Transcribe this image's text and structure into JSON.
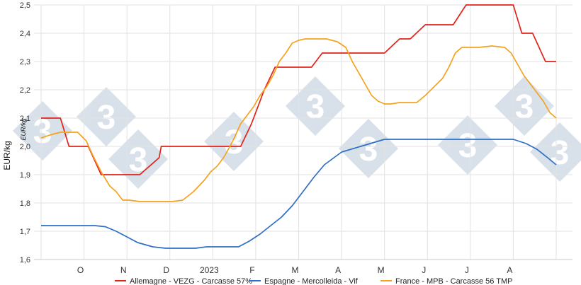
{
  "chart_data": {
    "type": "line",
    "title": "",
    "ylabel": "EUR/kg",
    "ylabel_secondary": "EUR/kg",
    "ylim": [
      1.6,
      2.5
    ],
    "yticks": [
      "1,6",
      "1,7",
      "1,8",
      "1,9",
      "2,0",
      "2,1",
      "2,2",
      "2,3",
      "2,4",
      "2,5"
    ],
    "xlim": [
      0,
      12.5
    ],
    "categories": [
      "O",
      "N",
      "D",
      "2023",
      "F",
      "M",
      "A",
      "M",
      "J",
      "J",
      "A"
    ],
    "grid": true,
    "legend_position": "bottom",
    "colors": {
      "grid": "#e2e2e2",
      "watermark": "#b9cad8"
    },
    "series": [
      {
        "name": "Allemagne - VEZG - Carcasse 57%",
        "color": "#e2231a",
        "x": [
          0,
          0.45,
          0.65,
          1.1,
          1.4,
          2.1,
          2.3,
          2.75,
          2.8,
          3.35,
          4.65,
          4.9,
          5.2,
          5.45,
          6.3,
          6.55,
          8.0,
          8.35,
          8.6,
          8.95,
          9.3,
          9.6,
          9.9,
          10.3,
          11.0,
          11.2,
          11.45,
          11.75,
          12.0
        ],
        "y": [
          2.1,
          2.1,
          2.0,
          2.0,
          1.9,
          1.9,
          1.9,
          1.96,
          2.0,
          2.0,
          2.0,
          2.08,
          2.2,
          2.28,
          2.28,
          2.33,
          2.33,
          2.38,
          2.38,
          2.43,
          2.43,
          2.43,
          2.5,
          2.5,
          2.5,
          2.4,
          2.4,
          2.3,
          2.3
        ]
      },
      {
        "name": "Espagne - Mercolleida - Vif",
        "color": "#2f6fc4",
        "x": [
          0,
          0.6,
          1.0,
          1.25,
          1.5,
          1.75,
          2.0,
          2.25,
          2.6,
          2.9,
          3.3,
          3.6,
          3.85,
          4.1,
          4.35,
          4.6,
          4.85,
          5.1,
          5.35,
          5.6,
          5.85,
          6.1,
          6.35,
          6.6,
          7.0,
          8.0,
          9.0,
          10.0,
          10.6,
          11.0,
          11.3,
          11.55,
          11.8,
          12.0
        ],
        "y": [
          1.72,
          1.72,
          1.72,
          1.72,
          1.716,
          1.7,
          1.68,
          1.66,
          1.645,
          1.64,
          1.64,
          1.64,
          1.645,
          1.645,
          1.645,
          1.645,
          1.665,
          1.69,
          1.72,
          1.75,
          1.79,
          1.84,
          1.89,
          1.935,
          1.98,
          2.025,
          2.025,
          2.025,
          2.025,
          2.025,
          2.01,
          1.99,
          1.96,
          1.935
        ]
      },
      {
        "name": "France - MPB - Carcasse 56 TMP",
        "color": "#f5a21d",
        "x": [
          0,
          0.2,
          0.45,
          0.65,
          0.85,
          1.05,
          1.2,
          1.4,
          1.6,
          1.75,
          1.9,
          2.05,
          2.3,
          2.55,
          2.8,
          3.05,
          3.3,
          3.55,
          3.8,
          3.95,
          4.1,
          4.25,
          4.4,
          4.5,
          4.65,
          4.8,
          4.95,
          5.1,
          5.25,
          5.4,
          5.55,
          5.7,
          5.85,
          6.0,
          6.15,
          6.4,
          6.65,
          6.9,
          7.1,
          7.25,
          7.4,
          7.55,
          7.7,
          7.85,
          8.0,
          8.15,
          8.35,
          8.55,
          8.75,
          8.95,
          9.15,
          9.35,
          9.5,
          9.65,
          9.8,
          9.95,
          10.2,
          10.5,
          10.8,
          10.95,
          11.1,
          11.25,
          11.4,
          11.55,
          11.7,
          11.85,
          12.0
        ],
        "y": [
          2.03,
          2.04,
          2.05,
          2.05,
          2.05,
          2.02,
          1.97,
          1.91,
          1.86,
          1.84,
          1.81,
          1.81,
          1.805,
          1.805,
          1.805,
          1.805,
          1.81,
          1.84,
          1.88,
          1.91,
          1.93,
          1.96,
          2.0,
          2.03,
          2.08,
          2.11,
          2.14,
          2.18,
          2.21,
          2.25,
          2.3,
          2.33,
          2.365,
          2.375,
          2.38,
          2.38,
          2.38,
          2.37,
          2.35,
          2.3,
          2.26,
          2.22,
          2.18,
          2.16,
          2.15,
          2.15,
          2.155,
          2.155,
          2.155,
          2.18,
          2.21,
          2.24,
          2.28,
          2.33,
          2.35,
          2.35,
          2.35,
          2.355,
          2.35,
          2.33,
          2.29,
          2.25,
          2.22,
          2.19,
          2.16,
          2.12,
          2.1
        ]
      }
    ]
  }
}
